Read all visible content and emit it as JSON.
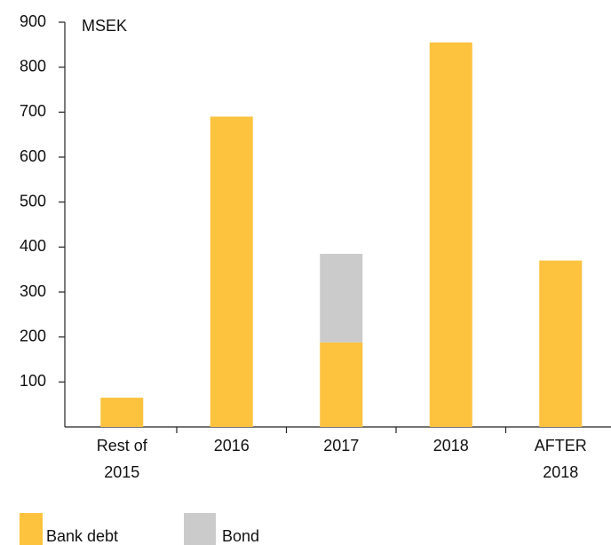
{
  "chart_data": {
    "type": "bar",
    "stacked": true,
    "y_unit_label": "MSEK",
    "categories": [
      "Rest of\n2015",
      "2016",
      "2017",
      "2018",
      "AFTER\n2018"
    ],
    "series": [
      {
        "name": "Bank debt",
        "color": "#fdc23e",
        "values": [
          65,
          690,
          188,
          855,
          370
        ]
      },
      {
        "name": "Bond",
        "color": "#cbcbcb",
        "values": [
          null,
          null,
          197,
          null,
          null
        ]
      }
    ],
    "ylim": [
      0,
      900
    ],
    "yticks": [
      100,
      200,
      300,
      400,
      500,
      600,
      700,
      800,
      900
    ]
  }
}
